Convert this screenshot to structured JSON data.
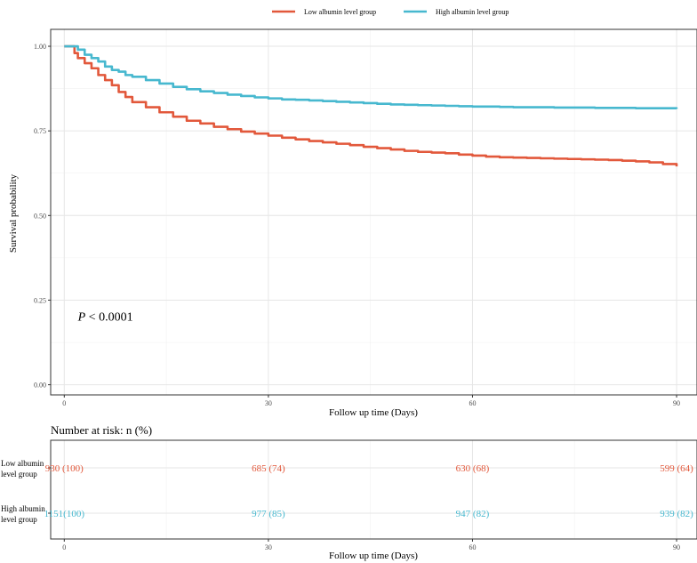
{
  "chart_data": {
    "type": "line",
    "subtype": "kaplan-meier",
    "legend_position": "top",
    "series": [
      {
        "name": "Low albumin level group",
        "color": "#E2583B",
        "x": [
          0,
          1,
          1.5,
          2,
          3,
          4,
          5,
          6,
          7,
          8,
          9,
          10,
          12,
          14,
          16,
          18,
          20,
          22,
          24,
          26,
          28,
          30,
          32,
          34,
          36,
          38,
          40,
          42,
          44,
          46,
          48,
          50,
          52,
          54,
          56,
          58,
          60,
          62,
          64,
          66,
          68,
          70,
          72,
          74,
          76,
          78,
          80,
          82,
          84,
          86,
          88,
          90
        ],
        "y": [
          1.0,
          1.0,
          0.98,
          0.965,
          0.95,
          0.935,
          0.915,
          0.9,
          0.885,
          0.865,
          0.85,
          0.835,
          0.82,
          0.805,
          0.792,
          0.78,
          0.772,
          0.762,
          0.755,
          0.748,
          0.742,
          0.736,
          0.73,
          0.725,
          0.72,
          0.716,
          0.712,
          0.708,
          0.703,
          0.699,
          0.695,
          0.691,
          0.688,
          0.686,
          0.684,
          0.68,
          0.677,
          0.674,
          0.672,
          0.671,
          0.67,
          0.669,
          0.668,
          0.667,
          0.666,
          0.665,
          0.664,
          0.662,
          0.66,
          0.657,
          0.652,
          0.645
        ]
      },
      {
        "name": "High albumin level group",
        "color": "#47B8CF",
        "x": [
          0,
          1,
          2,
          3,
          4,
          5,
          6,
          7,
          8,
          9,
          10,
          12,
          14,
          16,
          18,
          20,
          22,
          24,
          26,
          28,
          30,
          32,
          34,
          36,
          38,
          40,
          42,
          44,
          46,
          48,
          50,
          52,
          54,
          56,
          58,
          60,
          62,
          64,
          66,
          68,
          70,
          72,
          74,
          76,
          78,
          80,
          82,
          84,
          86,
          88,
          90
        ],
        "y": [
          1.0,
          1.0,
          0.99,
          0.975,
          0.965,
          0.955,
          0.94,
          0.93,
          0.925,
          0.915,
          0.91,
          0.9,
          0.89,
          0.88,
          0.873,
          0.867,
          0.862,
          0.857,
          0.853,
          0.849,
          0.846,
          0.843,
          0.842,
          0.84,
          0.838,
          0.836,
          0.834,
          0.832,
          0.83,
          0.828,
          0.827,
          0.826,
          0.825,
          0.824,
          0.823,
          0.822,
          0.822,
          0.821,
          0.82,
          0.82,
          0.82,
          0.819,
          0.819,
          0.819,
          0.818,
          0.818,
          0.818,
          0.817,
          0.817,
          0.817,
          0.815
        ]
      }
    ],
    "xlim": [
      -2,
      93
    ],
    "ylim": [
      -0.03,
      1.05
    ],
    "x_ticks": [
      0,
      30,
      60,
      90
    ],
    "y_ticks": [
      0.0,
      0.25,
      0.5,
      0.75,
      1.0
    ],
    "y_tick_labels": [
      "0.00",
      "0.25",
      "0.50",
      "0.75",
      "1.00"
    ],
    "x_minor_ticks": [
      15,
      45,
      75
    ],
    "y_minor_ticks": [
      0.125,
      0.375,
      0.625,
      0.875
    ],
    "grid": true,
    "xlabel": "Follow up time (Days)",
    "ylabel": "Survival probability",
    "annotation": {
      "p_italic": "P",
      "p_rest": " < 0.0001",
      "x": 2,
      "y": 0.2
    }
  },
  "risk_table": {
    "title": "Number at risk: n (%)",
    "xlabel": "Follow up time (Days)",
    "rows": [
      {
        "label_lines": [
          "Low albumin",
          "level group"
        ],
        "color": "#E2583B",
        "cells": [
          "930 (100)",
          "685  (74)",
          "630  (68)",
          "599  (64)"
        ]
      },
      {
        "label_lines": [
          "High albumin",
          "level group"
        ],
        "color": "#47B8CF",
        "cells": [
          "1151(100)",
          "977  (85)",
          "947  (82)",
          "939  (82)"
        ]
      }
    ]
  }
}
